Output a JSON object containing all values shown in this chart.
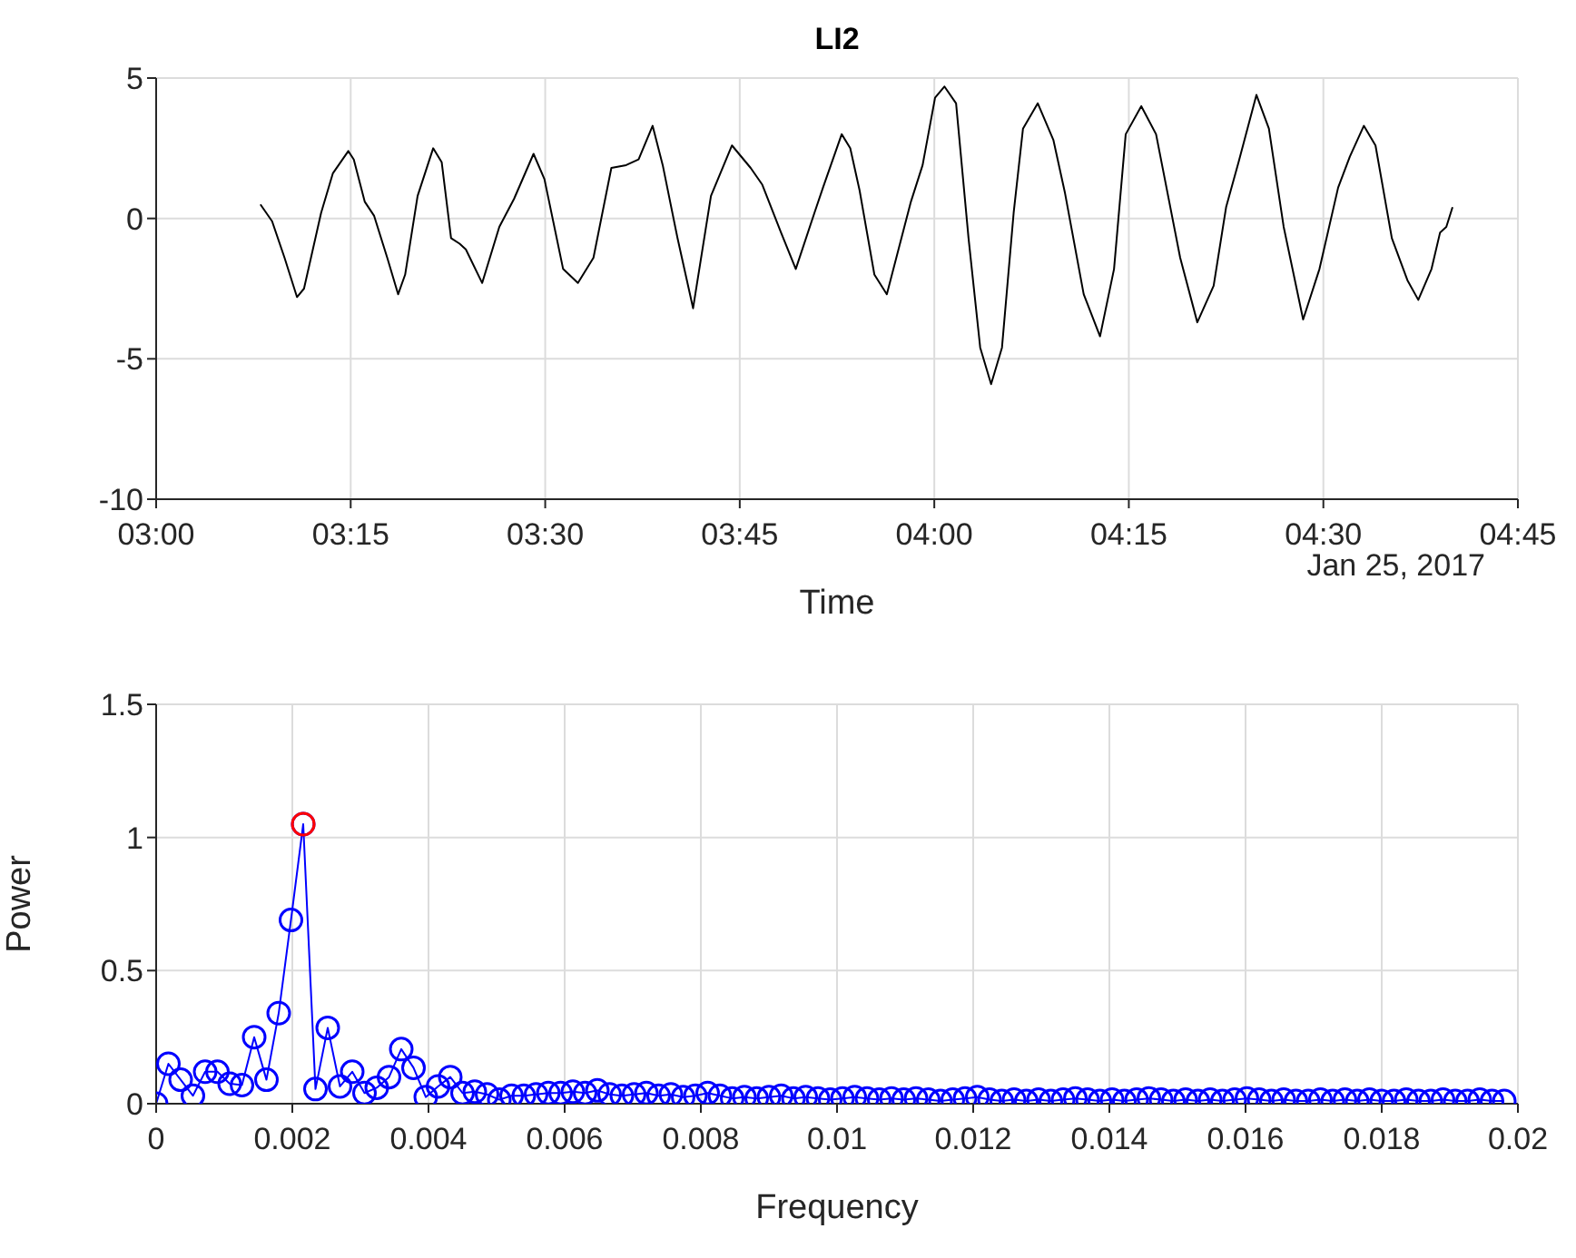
{
  "chart_data": [
    {
      "type": "line",
      "title": "LI2",
      "xlabel": "Time",
      "annotations": [
        "Jan 25, 2017"
      ],
      "series": [
        {
          "color": "#000000",
          "x": [
            3.134,
            3.149,
            3.165,
            3.181,
            3.19,
            3.212,
            3.227,
            3.247,
            3.254,
            3.268,
            3.28,
            3.297,
            3.311,
            3.32,
            3.336,
            3.356,
            3.367,
            3.379,
            3.39,
            3.398,
            3.419,
            3.441,
            3.46,
            3.485,
            3.499,
            3.523,
            3.542,
            3.562,
            3.585,
            3.604,
            3.62,
            3.638,
            3.651,
            3.67,
            3.69,
            3.713,
            3.74,
            3.764,
            3.779,
            3.803,
            3.822,
            3.846,
            3.857,
            3.881,
            3.892,
            3.904,
            3.923,
            3.939,
            3.954,
            3.97,
            3.985,
            4.001,
            4.013,
            4.028,
            4.044,
            4.059,
            4.073,
            4.087,
            4.102,
            4.114,
            4.133,
            4.153,
            4.168,
            4.192,
            4.213,
            4.231,
            4.246,
            4.266,
            4.285,
            4.316,
            4.338,
            4.359,
            4.375,
            4.391,
            4.414,
            4.43,
            4.449,
            4.474,
            4.495,
            4.519,
            4.534,
            4.552,
            4.567,
            4.588,
            4.608,
            4.622,
            4.639,
            4.65,
            4.658,
            4.666
          ],
          "values": [
            0.5,
            -0.1,
            -1.4,
            -2.8,
            -2.5,
            0.2,
            1.6,
            2.4,
            2.1,
            0.6,
            0.1,
            -1.4,
            -2.7,
            -2.0,
            0.8,
            2.5,
            2.0,
            -0.7,
            -0.9,
            -1.1,
            -2.3,
            -0.3,
            0.7,
            2.3,
            1.4,
            -1.8,
            -2.3,
            -1.4,
            1.8,
            1.9,
            2.1,
            3.3,
            1.9,
            -0.7,
            -3.2,
            0.8,
            2.6,
            1.8,
            1.2,
            -0.5,
            -1.8,
            0.2,
            1.1,
            3.0,
            2.5,
            1.0,
            -2.0,
            -2.7,
            -1.1,
            0.6,
            1.9,
            4.3,
            4.7,
            4.1,
            -0.7,
            -4.6,
            -5.9,
            -4.6,
            0.2,
            3.2,
            4.1,
            2.8,
            0.9,
            -2.7,
            -4.2,
            -1.8,
            3.0,
            4.0,
            3.0,
            -1.4,
            -3.7,
            -2.4,
            0.4,
            2.0,
            4.4,
            3.2,
            -0.3,
            -3.6,
            -1.8,
            1.1,
            2.2,
            3.3,
            2.6,
            -0.7,
            -2.2,
            -2.9,
            -1.8,
            -0.5,
            -0.3,
            0.4
          ]
        }
      ],
      "xlim": [
        3,
        4.75
      ],
      "xticks": [
        {
          "value": 3,
          "label": "03:00"
        },
        {
          "value": 3.25,
          "label": "03:15"
        },
        {
          "value": 3.5,
          "label": "03:30"
        },
        {
          "value": 3.75,
          "label": "03:45"
        },
        {
          "value": 4,
          "label": "04:00"
        },
        {
          "value": 4.25,
          "label": "04:15"
        },
        {
          "value": 4.5,
          "label": "04:30"
        },
        {
          "value": 4.75,
          "label": "04:45"
        }
      ],
      "ylim": [
        -10,
        5
      ],
      "yticks": [
        -10,
        -5,
        0,
        5
      ],
      "grid": true
    },
    {
      "type": "line",
      "xlabel": "Frequency",
      "ylabel": "Power",
      "series": [
        {
          "color": "#0000ff",
          "marker": "circle",
          "x": [
            0,
            0.00018,
            0.00036,
            0.00054,
            0.00072,
            0.0009,
            0.00108,
            0.00126,
            0.00144,
            0.00162,
            0.0018,
            0.00198,
            0.00216,
            0.00234,
            0.00252,
            0.0027,
            0.00288,
            0.00306,
            0.00324,
            0.00342,
            0.0036,
            0.00378,
            0.00396,
            0.00414,
            0.00432,
            0.0045,
            0.00468,
            0.00486,
            0.00504,
            0.00522,
            0.0054,
            0.00558,
            0.00576,
            0.00594,
            0.00612,
            0.0063,
            0.00648,
            0.00666,
            0.00684,
            0.00702,
            0.0072,
            0.00738,
            0.00756,
            0.00774,
            0.00792,
            0.0081,
            0.00828,
            0.00846,
            0.00864,
            0.00882,
            0.009,
            0.00918,
            0.00936,
            0.00954,
            0.00972,
            0.0099,
            0.01008,
            0.01026,
            0.01044,
            0.01062,
            0.0108,
            0.01098,
            0.01116,
            0.01134,
            0.01152,
            0.0117,
            0.01188,
            0.01206,
            0.01224,
            0.01242,
            0.0126,
            0.01278,
            0.01296,
            0.01314,
            0.01332,
            0.0135,
            0.01368,
            0.01386,
            0.01404,
            0.01422,
            0.0144,
            0.01458,
            0.01476,
            0.01494,
            0.01512,
            0.0153,
            0.01548,
            0.01566,
            0.01584,
            0.01602,
            0.0162,
            0.01638,
            0.01656,
            0.01674,
            0.01692,
            0.0171,
            0.01728,
            0.01746,
            0.01764,
            0.01782,
            0.018,
            0.01818,
            0.01836,
            0.01854,
            0.01872,
            0.0189,
            0.01908,
            0.01926,
            0.01944,
            0.01962,
            0.0198
          ],
          "values": [
            0,
            0.15,
            0.09,
            0.03,
            0.12,
            0.12,
            0.075,
            0.07,
            0.25,
            0.09,
            0.34,
            0.69,
            1.05,
            0.055,
            0.285,
            0.065,
            0.12,
            0.04,
            0.06,
            0.1,
            0.205,
            0.135,
            0.025,
            0.065,
            0.1,
            0.04,
            0.045,
            0.035,
            0.015,
            0.03,
            0.03,
            0.035,
            0.04,
            0.04,
            0.045,
            0.04,
            0.05,
            0.035,
            0.03,
            0.035,
            0.04,
            0.03,
            0.035,
            0.025,
            0.03,
            0.04,
            0.03,
            0.02,
            0.025,
            0.02,
            0.025,
            0.03,
            0.02,
            0.025,
            0.02,
            0.015,
            0.02,
            0.025,
            0.02,
            0.015,
            0.02,
            0.015,
            0.02,
            0.015,
            0.01,
            0.015,
            0.02,
            0.025,
            0.015,
            0.01,
            0.015,
            0.01,
            0.015,
            0.01,
            0.015,
            0.02,
            0.015,
            0.01,
            0.015,
            0.01,
            0.015,
            0.02,
            0.015,
            0.01,
            0.015,
            0.01,
            0.015,
            0.01,
            0.015,
            0.02,
            0.015,
            0.01,
            0.015,
            0.01,
            0.01,
            0.015,
            0.01,
            0.015,
            0.01,
            0.015,
            0.01,
            0.01,
            0.015,
            0.01,
            0.01,
            0.015,
            0.01,
            0.01,
            0.015,
            0.01,
            0.01
          ]
        },
        {
          "type": "scatter",
          "color": "#ff0000",
          "marker": "circle",
          "x": [
            0.00216
          ],
          "values": [
            1.05
          ]
        }
      ],
      "xlim": [
        0,
        0.02
      ],
      "xticks": [
        0,
        0.002,
        0.004,
        0.006,
        0.008,
        0.01,
        0.012,
        0.014,
        0.016,
        0.018,
        0.02
      ],
      "ylim": [
        0,
        1.5
      ],
      "yticks": [
        0,
        0.5,
        1,
        1.5
      ],
      "grid": true
    }
  ]
}
